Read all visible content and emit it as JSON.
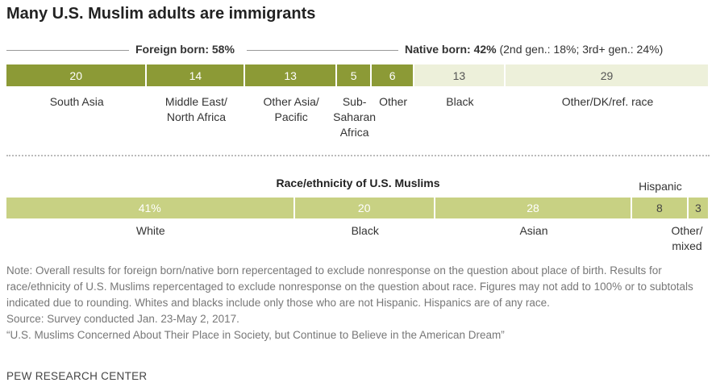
{
  "title": "Many U.S. Muslim adults are immigrants",
  "chart_data": [
    {
      "type": "stacked-bar",
      "groups": [
        {
          "name": "Foreign born: 58%"
        },
        {
          "name": "Native born: 42%",
          "detail": "(2nd gen.: 18%; 3rd+ gen.: 24%)"
        }
      ],
      "categories": [
        "South Asia",
        "Middle East/ North Africa",
        "Other Asia/ Pacific",
        "Sub-Saharan Africa",
        "Other",
        "Black",
        "Other/DK/ref. race"
      ],
      "values": [
        20,
        14,
        13,
        5,
        6,
        13,
        29
      ],
      "colors": [
        "#8c9a36",
        "#8c9a36",
        "#8c9a36",
        "#8c9a36",
        "#8c9a36",
        "#edf0da",
        "#edf0da"
      ],
      "label_colors": [
        "#ffffff",
        "#ffffff",
        "#ffffff",
        "#ffffff",
        "#ffffff",
        "#555555",
        "#555555"
      ],
      "xlim": [
        0,
        100
      ]
    },
    {
      "type": "stacked-bar",
      "title": "Race/ethnicity of U.S. Muslims",
      "categories": [
        "White",
        "Black",
        "Asian",
        "Hispanic",
        "Other/ mixed"
      ],
      "values": [
        41,
        20,
        28,
        8,
        3
      ],
      "value_labels": [
        "41%",
        "20",
        "28",
        "8",
        "3"
      ],
      "colors": [
        "#c8d183",
        "#c8d183",
        "#c8d183",
        "#c8d183",
        "#c8d183"
      ],
      "label_colors": [
        "#ffffff",
        "#ffffff",
        "#ffffff",
        "#444444",
        "#444444"
      ],
      "xlim": [
        0,
        100
      ]
    }
  ],
  "note": "Note: Overall results for foreign born/native born repercentaged to exclude nonresponse on the question about place of birth. Results for race/ethnicity of U.S. Muslims repercentaged to exclude nonresponse on the question about race. Figures may not add to 100% or to subtotals indicated due to rounding. Whites and blacks include only those who are not Hispanic. Hispanics are of any race.",
  "source": "Source: Survey conducted Jan. 23-May 2, 2017.",
  "citation": "“U.S. Muslims Concerned About Their Place in Society, but Continue to Believe in the American Dream”",
  "footer": "PEW RESEARCH CENTER"
}
